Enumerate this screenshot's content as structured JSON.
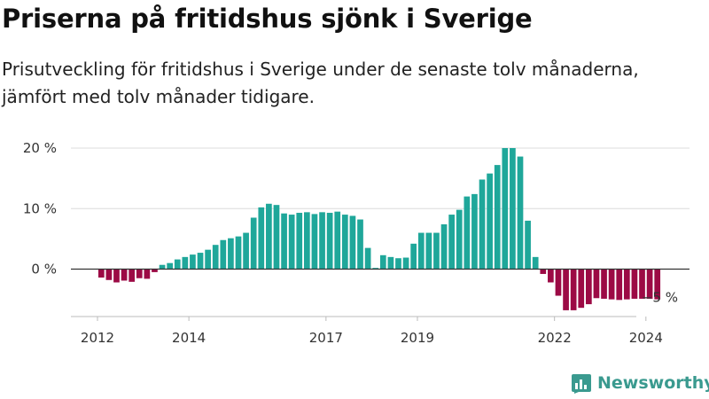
{
  "title": "Priserna på fritidshus sjönk i Sverige",
  "subtitle": "Prisutveckling för fritidshus i Sverige under de senaste tolv månaderna, jämfört med tolv månader tidigare.",
  "brand": {
    "name": "Newsworthy",
    "logo_icon": "newsworthy-bar-chart-icon",
    "color": "#3a9a8f"
  },
  "chart_data": {
    "type": "bar",
    "title": "Priserna på fritidshus sjönk i Sverige",
    "xlabel": "",
    "ylabel": "",
    "ylim": [
      -8,
      20
    ],
    "yticks": [
      {
        "value": 20,
        "label": "20 %"
      },
      {
        "value": 10,
        "label": "10 %"
      },
      {
        "value": 0,
        "label": "0 %"
      },
      {
        "value": -5,
        "label": "−5 %"
      }
    ],
    "x_tick_labels": [
      "2012",
      "2014",
      "2017",
      "2019",
      "2022",
      "2024"
    ],
    "grid": true,
    "colors": {
      "positive": "#1fa79a",
      "negative": "#9c0a45"
    },
    "categories": [
      "2012-02",
      "2012-04",
      "2012-06",
      "2012-08",
      "2012-10",
      "2012-12",
      "2013-02",
      "2013-04",
      "2013-06",
      "2013-08",
      "2013-10",
      "2013-12",
      "2014-02",
      "2014-04",
      "2014-06",
      "2014-08",
      "2014-10",
      "2014-12",
      "2015-02",
      "2015-04",
      "2015-06",
      "2015-08",
      "2015-10",
      "2015-12",
      "2016-02",
      "2016-04",
      "2016-06",
      "2016-08",
      "2016-10",
      "2016-12",
      "2017-02",
      "2017-04",
      "2017-06",
      "2017-08",
      "2017-10",
      "2017-12",
      "2018-02",
      "2018-04",
      "2018-06",
      "2018-08",
      "2018-10",
      "2018-12",
      "2019-02",
      "2019-04",
      "2019-06",
      "2019-08",
      "2019-10",
      "2019-12",
      "2020-02",
      "2020-04",
      "2020-06",
      "2020-08",
      "2020-10",
      "2020-12",
      "2021-02",
      "2021-04",
      "2021-06",
      "2021-08",
      "2021-10",
      "2021-12",
      "2022-02",
      "2022-04",
      "2022-06",
      "2022-08",
      "2022-10",
      "2022-12",
      "2023-02",
      "2023-04",
      "2023-06",
      "2023-08",
      "2023-10",
      "2023-12",
      "2024-02",
      "2024-04"
    ],
    "values": [
      -1.4,
      -1.8,
      -2.2,
      -1.9,
      -2.1,
      -1.5,
      -1.6,
      -0.5,
      0.7,
      1.0,
      1.6,
      2.0,
      2.4,
      2.7,
      3.2,
      4.0,
      4.8,
      5.1,
      5.4,
      6.0,
      8.5,
      10.2,
      10.8,
      10.6,
      9.2,
      9.0,
      9.3,
      9.4,
      9.1,
      9.4,
      9.3,
      9.5,
      9.0,
      8.8,
      8.2,
      3.5,
      0.2,
      2.3,
      2.0,
      1.8,
      1.9,
      4.2,
      6.0,
      6.0,
      6.0,
      7.4,
      9.0,
      9.8,
      12.0,
      12.4,
      14.8,
      15.8,
      17.2,
      20.0,
      20.0,
      18.6,
      8.0,
      2.0,
      -0.8,
      -2.2,
      -4.4,
      -6.8,
      -6.8,
      -6.4,
      -5.8,
      -4.8,
      -4.9,
      -5.0,
      -5.1,
      -5.0,
      -4.9,
      -4.9,
      -4.9,
      -5.0
    ]
  }
}
